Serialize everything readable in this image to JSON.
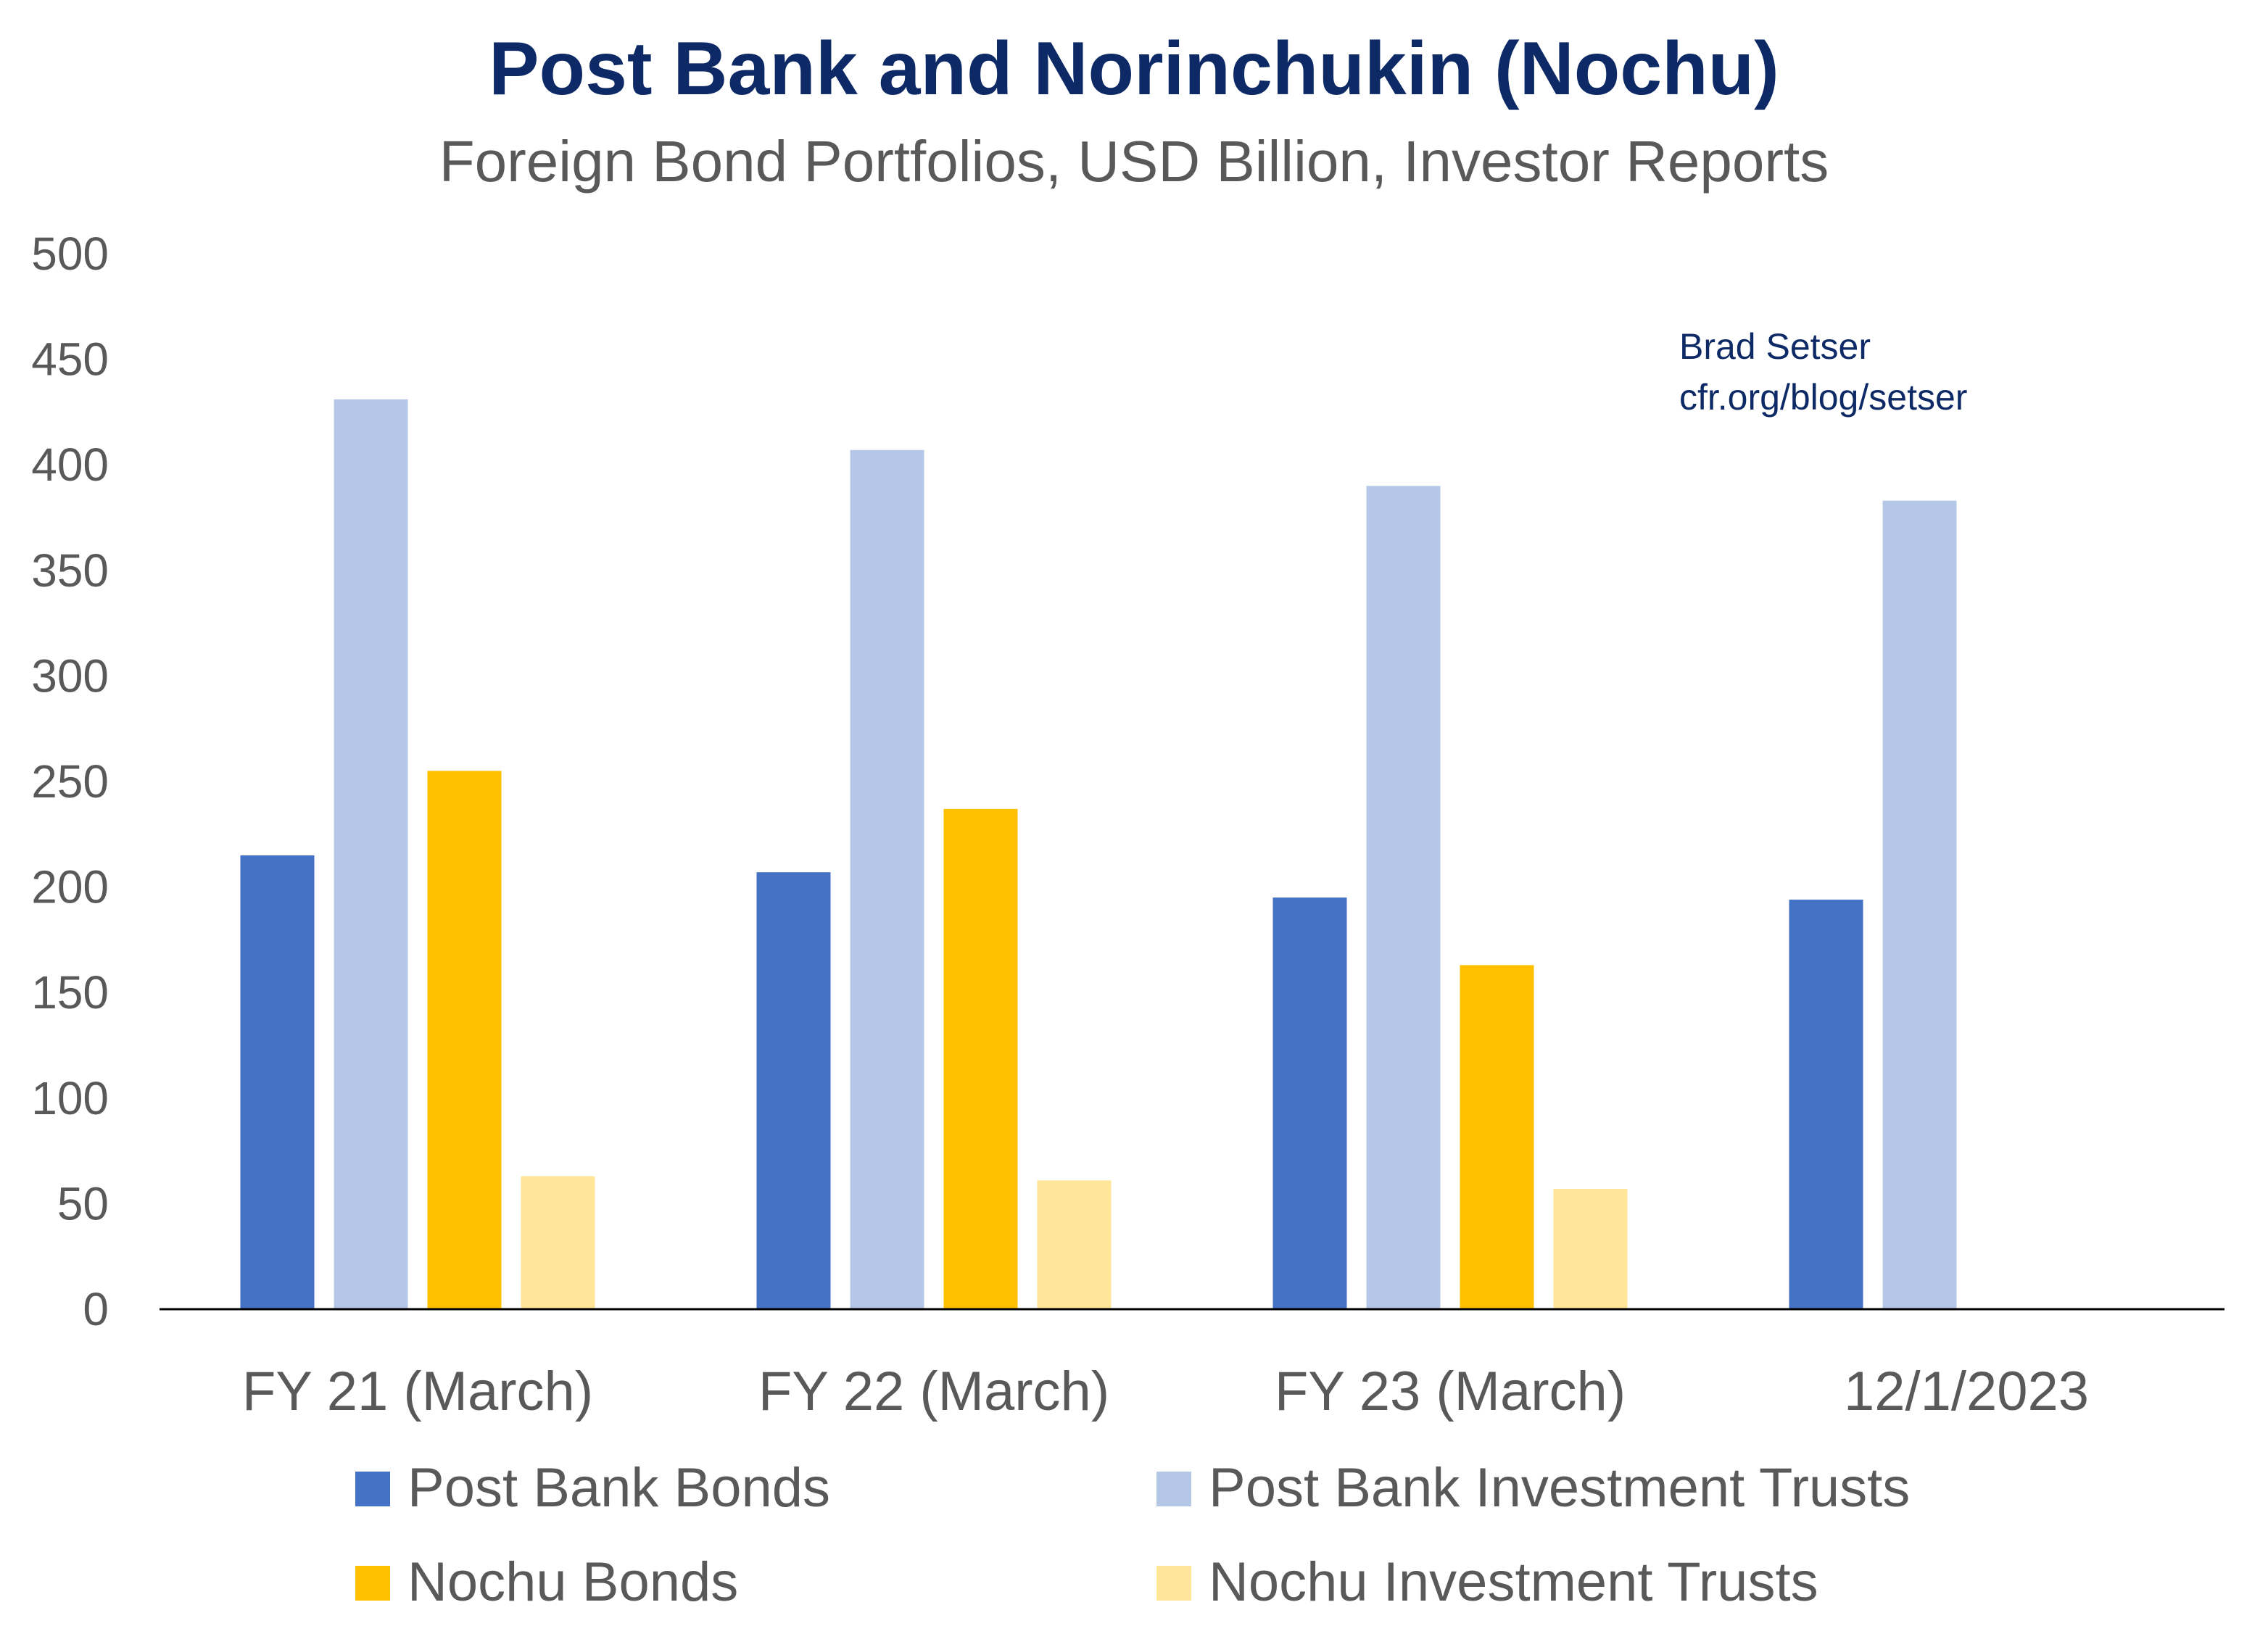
{
  "chart_data": {
    "type": "bar",
    "title": "Post Bank and Norinchukin (Nochu)",
    "subtitle": "Foreign Bond Portfolios,  USD Billion, Investor Reports",
    "annotations": [
      "Brad Setser",
      "cfr.org/blog/setser"
    ],
    "categories": [
      "FY 21 (March)",
      "FY 22 (March)",
      "FY 23 (March)",
      "12/1/2023"
    ],
    "series": [
      {
        "name": "Post Bank Bonds",
        "color": "#4472c4",
        "values": [
          215,
          207,
          195,
          194
        ]
      },
      {
        "name": "Post Bank Investment Trusts",
        "color": "#b4c7e7",
        "values": [
          431,
          407,
          390,
          383
        ]
      },
      {
        "name": "Nochu Bonds",
        "color": "#ffc000",
        "values": [
          255,
          237,
          163,
          null
        ]
      },
      {
        "name": "Nochu Investment Trusts",
        "color": "#ffe699",
        "values": [
          63,
          61,
          57,
          null
        ]
      }
    ],
    "ylim": [
      0,
      500
    ],
    "yticks": [
      0,
      50,
      100,
      150,
      200,
      250,
      300,
      350,
      400,
      450,
      500
    ],
    "xlabel": "",
    "ylabel": "",
    "grid": false,
    "legend_position": "bottom"
  }
}
